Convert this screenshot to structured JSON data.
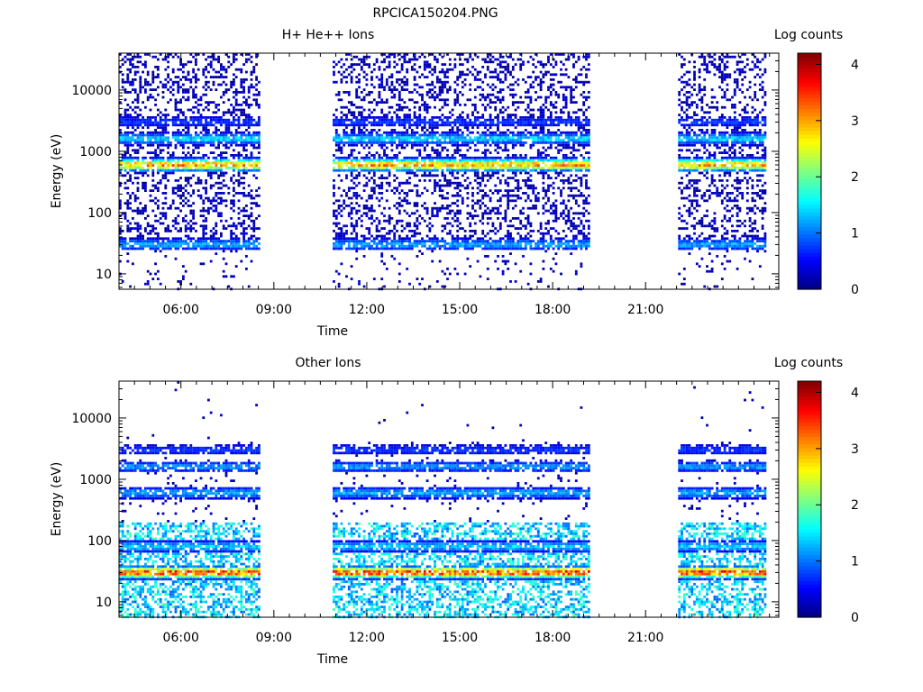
{
  "figure_title": "RPCICA150204.PNG",
  "chart_data": [
    {
      "type": "heatmap",
      "title": "H+ He++ Ions",
      "xlabel": "Time",
      "ylabel": "Energy (eV)",
      "x_ticks": [
        "06:00",
        "09:00",
        "12:00",
        "15:00",
        "18:00",
        "21:00"
      ],
      "xlim_hours": [
        4.0,
        25.3
      ],
      "y_scale": "log",
      "y_ticks": [
        "10",
        "100",
        "1000",
        "10000"
      ],
      "ylim": [
        5.6,
        40000
      ],
      "colorbar": {
        "label": "Log counts",
        "ticks": [
          "0",
          "1",
          "2",
          "3",
          "4"
        ],
        "range": [
          0,
          4.2
        ]
      },
      "data_intervals_hours": [
        [
          4.0,
          8.5
        ],
        [
          10.9,
          19.2
        ],
        [
          22.05,
          24.9
        ]
      ],
      "features": [
        {
          "energy_eV": 30,
          "log_counts": 1.3
        },
        {
          "energy_eV": 600,
          "log_counts": 3.2
        },
        {
          "energy_eV": 1600,
          "log_counts": 1.5
        },
        {
          "energy_eV": 3000,
          "log_counts": 0.8
        }
      ]
    },
    {
      "type": "heatmap",
      "title": "Other Ions",
      "xlabel": "Time",
      "ylabel": "Energy (eV)",
      "x_ticks": [
        "06:00",
        "09:00",
        "12:00",
        "15:00",
        "18:00",
        "21:00"
      ],
      "xlim_hours": [
        4.0,
        25.3
      ],
      "y_scale": "log",
      "y_ticks": [
        "10",
        "100",
        "1000",
        "10000"
      ],
      "ylim": [
        5.6,
        40000
      ],
      "colorbar": {
        "label": "Log counts",
        "ticks": [
          "0",
          "1",
          "2",
          "3",
          "4"
        ],
        "range": [
          0,
          4.2
        ]
      },
      "data_intervals_hours": [
        [
          4.0,
          8.5
        ],
        [
          10.9,
          19.2
        ],
        [
          22.05,
          24.9
        ]
      ],
      "features": [
        {
          "energy_eV": 30,
          "log_counts": 3.6
        },
        {
          "energy_eV": 80,
          "log_counts": 1.5
        },
        {
          "energy_eV": 600,
          "log_counts": 1.3
        },
        {
          "energy_eV": 1600,
          "log_counts": 1.2
        },
        {
          "energy_eV": 3000,
          "log_counts": 0.8
        }
      ]
    }
  ]
}
